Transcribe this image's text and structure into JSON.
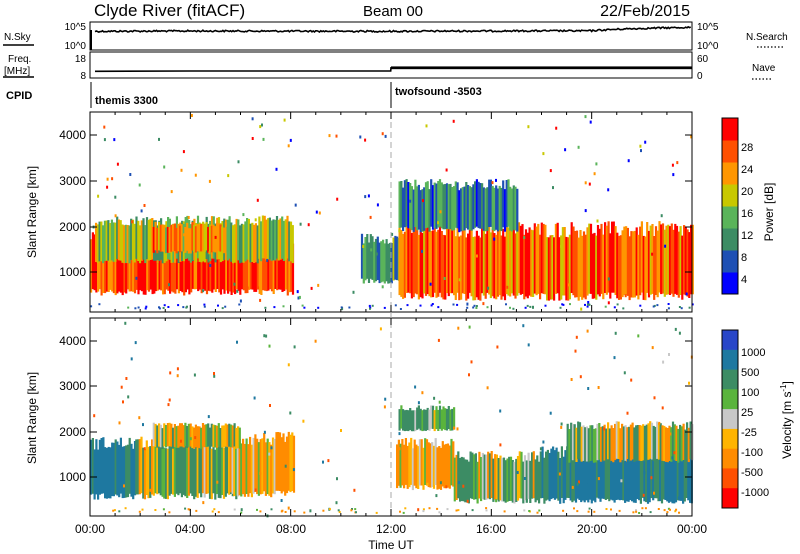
{
  "header": {
    "station": "Clyde River (fitACF)",
    "beam": "Beam 00",
    "date": "22/Feb/2015"
  },
  "aux_panel": {
    "nsky_label": "N.Sky",
    "nsky_ticks": [
      "10^5",
      "10^0"
    ],
    "nsearch_label": "N.Search",
    "nsearch_ticks": [
      "10^5",
      "10^0"
    ],
    "freq_label": "Freq.",
    "freq_unit": "[MHz]",
    "freq_ticks": [
      "18",
      "8"
    ],
    "nave_label": "Nave",
    "nave_ticks": [
      "60",
      "0"
    ],
    "cpid_label": "CPID",
    "cpid_segments": [
      {
        "name": "themis 3300",
        "start_hour": 0
      },
      {
        "name": "twofsound -3503",
        "start_hour": 12
      }
    ]
  },
  "power_panel": {
    "ylabel": "Slant Range [km]",
    "yticks": [
      "4000",
      "3000",
      "2000",
      "1000"
    ],
    "colorbar_label": "Power [dB]",
    "colorbar_ticks": [
      "28",
      "24",
      "20",
      "16",
      "12",
      "8",
      "4"
    ],
    "colors": [
      "#0000ff",
      "#1e50b4",
      "#3c8c64",
      "#5ab45a",
      "#c8c800",
      "#ff9600",
      "#ff5000",
      "#ff0000"
    ]
  },
  "velocity_panel": {
    "ylabel": "Slant Range [km]",
    "yticks": [
      "4000",
      "3000",
      "2000",
      "1000"
    ],
    "colorbar_label": "Velocity [m s",
    "colorbar_label_sup": "-1",
    "colorbar_label_end": "]",
    "colorbar_ticks": [
      "1000",
      "500",
      "100",
      "25",
      "-25",
      "-100",
      "-500",
      "-1000"
    ],
    "colors": [
      "#2846c8",
      "#1e78a0",
      "#3c8c64",
      "#5ab43c",
      "#c8c8c8",
      "#ffb400",
      "#ff8c00",
      "#ff5000",
      "#ff0000"
    ]
  },
  "xaxis": {
    "label": "Time UT",
    "ticks": [
      "00:00",
      "04:00",
      "08:00",
      "12:00",
      "16:00",
      "20:00",
      "00:00"
    ]
  },
  "chart_data": [
    {
      "type": "line",
      "name": "N.Sky",
      "x_range_hours": [
        0,
        24
      ],
      "y_scale": "log",
      "ylim": [
        1,
        100000
      ],
      "x": [
        0.2,
        4,
        8,
        12,
        16,
        20,
        24
      ],
      "y": [
        3000,
        3500,
        3200,
        3000,
        3500,
        3800,
        20000
      ]
    },
    {
      "type": "line",
      "name": "Freq.",
      "x_range_hours": [
        0,
        24
      ],
      "ylim": [
        8,
        18
      ],
      "x": [
        0.2,
        4,
        8,
        11.99,
        12,
        16,
        20,
        24
      ],
      "y": [
        10.5,
        10.6,
        10.6,
        10.6,
        12,
        12,
        12,
        12
      ]
    },
    {
      "type": "heatmap",
      "title": "Power",
      "x_range_hours": [
        0,
        24
      ],
      "ylim_km": [
        180,
        4600
      ],
      "colorbar_range_db": [
        0,
        32
      ],
      "regions": [
        {
          "t0": 0,
          "t1": 8.1,
          "r0": 600,
          "r1": 1800,
          "value_db": 28
        },
        {
          "t0": 0.2,
          "t1": 8.1,
          "r0": 1300,
          "r1": 2200,
          "value_db": 16
        },
        {
          "t0": 2.5,
          "t1": 5.5,
          "r0": 1500,
          "r1": 2100,
          "value_db": 22
        },
        {
          "t0": 10.8,
          "t1": 12.4,
          "r0": 850,
          "r1": 1800,
          "value_db": 10
        },
        {
          "t0": 12.3,
          "t1": 24,
          "r0": 500,
          "r1": 2000,
          "value_db": 26
        },
        {
          "t0": 12.3,
          "t1": 17,
          "r0": 2000,
          "r1": 3000,
          "value_db": 10
        }
      ]
    },
    {
      "type": "heatmap",
      "title": "Velocity",
      "x_range_hours": [
        0,
        24
      ],
      "ylim_km": [
        180,
        4600
      ],
      "colorbar_ticks_ms": [
        1000,
        500,
        100,
        25,
        -25,
        -100,
        -500,
        -1000
      ],
      "regions": [
        {
          "t0": 0,
          "t1": 1.8,
          "r0": 600,
          "r1": 1800,
          "value_ms": 600
        },
        {
          "t0": 1.8,
          "t1": 6,
          "r0": 600,
          "r1": 1800,
          "value_ms": 120
        },
        {
          "t0": 5.5,
          "t1": 8.1,
          "r0": 650,
          "r1": 1900,
          "value_ms": -200
        },
        {
          "t0": 2.5,
          "t1": 6,
          "r0": 1700,
          "r1": 2200,
          "value_ms": 0
        },
        {
          "t0": 12.2,
          "t1": 14.5,
          "r0": 800,
          "r1": 1800,
          "value_ms": -200
        },
        {
          "t0": 14.5,
          "t1": 18,
          "r0": 500,
          "r1": 1500,
          "value_ms": 100
        },
        {
          "t0": 18,
          "t1": 24,
          "r0": 500,
          "r1": 1600,
          "value_ms": 600
        },
        {
          "t0": 19,
          "t1": 24,
          "r0": 1400,
          "r1": 2200,
          "value_ms": 0
        },
        {
          "t0": 12.3,
          "t1": 14.5,
          "r0": 2100,
          "r1": 2600,
          "value_ms": 200
        }
      ]
    }
  ]
}
